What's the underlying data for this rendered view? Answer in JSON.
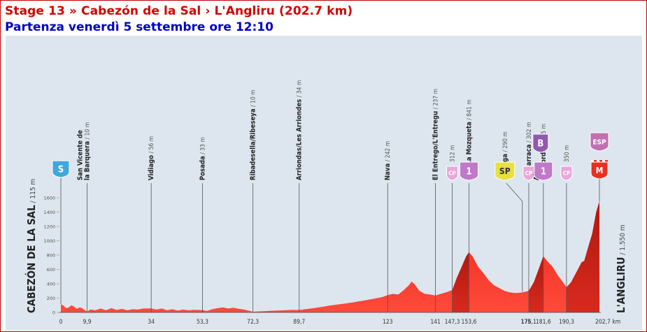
{
  "header": {
    "title": "Stage 13 » Cabezón de la Sal › L'Angliru (202.7 km)",
    "subtitle": "Partenza venerdì 5 settembre ore 12:10"
  },
  "chart_data": {
    "type": "area",
    "xlabel": "",
    "ylabel": "",
    "xunit": "km",
    "ylim": [
      0,
      1600
    ],
    "yticks": [
      0,
      200,
      400,
      600,
      800,
      1000,
      1200,
      1400,
      1600
    ],
    "xlim": [
      0,
      202.7
    ],
    "xticks": [
      {
        "value": 0,
        "label": "0"
      },
      {
        "value": 9.9,
        "label": "9,9"
      },
      {
        "value": 34,
        "label": "34"
      },
      {
        "value": 53.3,
        "label": "53,3"
      },
      {
        "value": 72.3,
        "label": "72,3"
      },
      {
        "value": 89.7,
        "label": "89,7"
      },
      {
        "value": 123,
        "label": "123"
      },
      {
        "value": 141,
        "label": "141"
      },
      {
        "value": 147.3,
        "label": "147,3"
      },
      {
        "value": 153.6,
        "label": "153,6"
      },
      {
        "value": 175,
        "label": "175"
      },
      {
        "value": 176.1,
        "label": "176,1"
      },
      {
        "value": 181.6,
        "label": "181,6"
      },
      {
        "value": 190.3,
        "label": "190,3"
      },
      {
        "value": 202.7,
        "label": "202,7 km"
      }
    ],
    "start": {
      "name": "CABEZÓN DE LA SAL",
      "alt": " / 115 m"
    },
    "finish": {
      "name": "L'ANGLIRU",
      "alt": " / 1.550 m"
    },
    "profile": [
      [
        0,
        115
      ],
      [
        1,
        95
      ],
      [
        2,
        60
      ],
      [
        3,
        70
      ],
      [
        4,
        100
      ],
      [
        5,
        80
      ],
      [
        6,
        50
      ],
      [
        7,
        70
      ],
      [
        8,
        60
      ],
      [
        9.9,
        10
      ],
      [
        11,
        40
      ],
      [
        13,
        30
      ],
      [
        15,
        55
      ],
      [
        17,
        30
      ],
      [
        19,
        60
      ],
      [
        21,
        35
      ],
      [
        23,
        50
      ],
      [
        25,
        30
      ],
      [
        27,
        45
      ],
      [
        29,
        40
      ],
      [
        31,
        55
      ],
      [
        34,
        56
      ],
      [
        36,
        40
      ],
      [
        38,
        55
      ],
      [
        40,
        30
      ],
      [
        42,
        45
      ],
      [
        44,
        25
      ],
      [
        46,
        40
      ],
      [
        48,
        30
      ],
      [
        50,
        35
      ],
      [
        53.3,
        33
      ],
      [
        55,
        20
      ],
      [
        57,
        45
      ],
      [
        59,
        60
      ],
      [
        61,
        70
      ],
      [
        63,
        55
      ],
      [
        65,
        65
      ],
      [
        67,
        50
      ],
      [
        69,
        40
      ],
      [
        72.3,
        10
      ],
      [
        75,
        15
      ],
      [
        78,
        20
      ],
      [
        81,
        25
      ],
      [
        84,
        30
      ],
      [
        87,
        35
      ],
      [
        89.7,
        34
      ],
      [
        92,
        45
      ],
      [
        95,
        60
      ],
      [
        98,
        75
      ],
      [
        101,
        95
      ],
      [
        104,
        110
      ],
      [
        107,
        125
      ],
      [
        110,
        140
      ],
      [
        113,
        160
      ],
      [
        116,
        180
      ],
      [
        119,
        200
      ],
      [
        121,
        215
      ],
      [
        123,
        242
      ],
      [
        125,
        260
      ],
      [
        127,
        250
      ],
      [
        129,
        310
      ],
      [
        131,
        380
      ],
      [
        132,
        430
      ],
      [
        133,
        400
      ],
      [
        135,
        300
      ],
      [
        137,
        260
      ],
      [
        139,
        250
      ],
      [
        141,
        237
      ],
      [
        143,
        260
      ],
      [
        145,
        280
      ],
      [
        147.3,
        312
      ],
      [
        149,
        480
      ],
      [
        151,
        650
      ],
      [
        152.5,
        780
      ],
      [
        153.6,
        841
      ],
      [
        155,
        780
      ],
      [
        157,
        640
      ],
      [
        159,
        550
      ],
      [
        161,
        450
      ],
      [
        163,
        380
      ],
      [
        165,
        340
      ],
      [
        167,
        300
      ],
      [
        169,
        280
      ],
      [
        171,
        270
      ],
      [
        173,
        275
      ],
      [
        175,
        290
      ],
      [
        176.1,
        302
      ],
      [
        178,
        420
      ],
      [
        180,
        620
      ],
      [
        181.6,
        785
      ],
      [
        183,
        720
      ],
      [
        185,
        640
      ],
      [
        187,
        520
      ],
      [
        189,
        420
      ],
      [
        190.3,
        350
      ],
      [
        192,
        420
      ],
      [
        194,
        560
      ],
      [
        196,
        700
      ],
      [
        197,
        720
      ],
      [
        198,
        850
      ],
      [
        200,
        1100
      ],
      [
        201.5,
        1400
      ],
      [
        202.7,
        1550
      ]
    ],
    "points": [
      {
        "km": 0,
        "alt": 115,
        "name": "",
        "elev": "",
        "marker": {
          "type": "S",
          "color": "#3fa8de",
          "label": "S"
        }
      },
      {
        "km": 9.9,
        "alt": 10,
        "name": "San Vicente de\nla Barquera",
        "elev": " / 10 m"
      },
      {
        "km": 34,
        "alt": 56,
        "name": "Vidiago",
        "elev": " / 56 m"
      },
      {
        "km": 53.3,
        "alt": 33,
        "name": "Posada",
        "elev": " / 33 m"
      },
      {
        "km": 72.3,
        "alt": 10,
        "name": "Ribadesella/Ribeseya",
        "elev": " / 10 m"
      },
      {
        "km": 89.7,
        "alt": 34,
        "name": "Arriondas/Les Arriondes",
        "elev": " / 34 m"
      },
      {
        "km": 123,
        "alt": 242,
        "name": "Nava",
        "elev": " / 242 m"
      },
      {
        "km": 141,
        "alt": 237,
        "name": "El Entrego/L'Entregu",
        "elev": " / 237 m"
      },
      {
        "km": 147.3,
        "alt": 312,
        "name": "",
        "elev": "312 m",
        "marker": {
          "type": "CP",
          "color": "#e8a8d8",
          "label": "CP"
        }
      },
      {
        "km": 153.6,
        "alt": 841,
        "name": "Alto La Mozqueta",
        "elev": " / 841 m",
        "marker": {
          "type": "1",
          "color": "#c078c8",
          "label": "1"
        }
      },
      {
        "km": 175,
        "alt": 290,
        "name": "La Vega",
        "elev": " / 290 m",
        "marker": {
          "type": "SP",
          "color": "#e8e040",
          "label": "SP"
        }
      },
      {
        "km": 176.1,
        "alt": 302,
        "name": "La Barraca",
        "elev": " / 302 m",
        "marker": {
          "type": "CP",
          "color": "#e8a8d8",
          "label": "CP"
        }
      },
      {
        "km": 181.6,
        "alt": 785,
        "name": "Alto\ndel Cordal",
        "elev": " / 785 m",
        "marker": {
          "type": "1",
          "color": "#c078c8",
          "label": "1"
        },
        "marker2": {
          "type": "B",
          "color": "#9058b0",
          "label": "B"
        }
      },
      {
        "km": 190.3,
        "alt": 350,
        "name": "",
        "elev": "350 m",
        "marker": {
          "type": "CP",
          "color": "#e8a8d8",
          "label": "CP"
        }
      },
      {
        "km": 202.7,
        "alt": 1550,
        "name": "",
        "elev": "",
        "marker": {
          "type": "M",
          "color": "#e83020",
          "label": "M"
        },
        "marker2": {
          "type": "ESP",
          "color": "#c070b0",
          "label": "ESP"
        }
      }
    ]
  }
}
